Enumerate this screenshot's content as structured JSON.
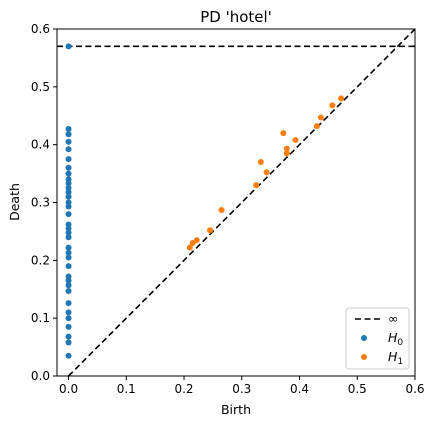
{
  "chart_data": {
    "type": "scatter",
    "title": "PD 'hotel'",
    "xlabel": "Birth",
    "ylabel": "Death",
    "xlim": [
      -0.02,
      0.6
    ],
    "ylim": [
      0.0,
      0.6
    ],
    "xticks": [
      "0.0",
      "0.1",
      "0.2",
      "0.3",
      "0.4",
      "0.5",
      "0.6"
    ],
    "yticks": [
      "0.0",
      "0.1",
      "0.2",
      "0.3",
      "0.4",
      "0.5",
      "0.6"
    ],
    "grid": false,
    "legend_position": "bottom-right",
    "infinity_line": {
      "y": 0.57,
      "label": "∞",
      "style": "dashed",
      "color": "#000000"
    },
    "diagonal": {
      "style": "dashed",
      "color": "#000000"
    },
    "series": [
      {
        "name": "H",
        "subscript": "0",
        "color": "#1f77b4",
        "points": [
          [
            0.0,
            0.57
          ],
          [
            0.0,
            0.427
          ],
          [
            0.0,
            0.418
          ],
          [
            0.0,
            0.405
          ],
          [
            0.0,
            0.392
          ],
          [
            0.0,
            0.375
          ],
          [
            0.0,
            0.36
          ],
          [
            0.0,
            0.35
          ],
          [
            0.0,
            0.34
          ],
          [
            0.0,
            0.333
          ],
          [
            0.0,
            0.325
          ],
          [
            0.0,
            0.318
          ],
          [
            0.0,
            0.31
          ],
          [
            0.0,
            0.3
          ],
          [
            0.0,
            0.293
          ],
          [
            0.0,
            0.28
          ],
          [
            0.0,
            0.262
          ],
          [
            0.0,
            0.255
          ],
          [
            0.0,
            0.248
          ],
          [
            0.0,
            0.24
          ],
          [
            0.0,
            0.222
          ],
          [
            0.0,
            0.213
          ],
          [
            0.0,
            0.205
          ],
          [
            0.0,
            0.19
          ],
          [
            0.0,
            0.172
          ],
          [
            0.0,
            0.165
          ],
          [
            0.0,
            0.157
          ],
          [
            0.0,
            0.147
          ],
          [
            0.0,
            0.126
          ],
          [
            0.0,
            0.11
          ],
          [
            0.0,
            0.1
          ],
          [
            0.0,
            0.085
          ],
          [
            0.0,
            0.068
          ],
          [
            0.0,
            0.058
          ],
          [
            0.0,
            0.035
          ]
        ]
      },
      {
        "name": "H",
        "subscript": "1",
        "color": "#ff7f0e",
        "points": [
          [
            0.21,
            0.222
          ],
          [
            0.215,
            0.23
          ],
          [
            0.222,
            0.235
          ],
          [
            0.245,
            0.252
          ],
          [
            0.265,
            0.287
          ],
          [
            0.325,
            0.33
          ],
          [
            0.333,
            0.37
          ],
          [
            0.343,
            0.352
          ],
          [
            0.372,
            0.42
          ],
          [
            0.378,
            0.393
          ],
          [
            0.378,
            0.385
          ],
          [
            0.393,
            0.408
          ],
          [
            0.43,
            0.432
          ],
          [
            0.437,
            0.447
          ],
          [
            0.457,
            0.468
          ],
          [
            0.472,
            0.48
          ]
        ]
      }
    ]
  }
}
